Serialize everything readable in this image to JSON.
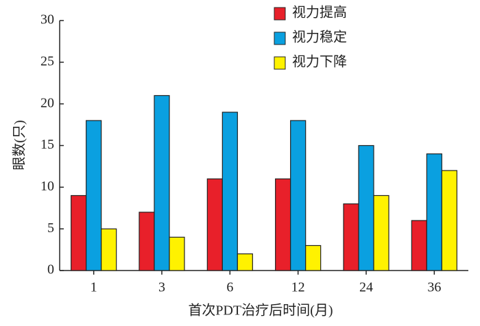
{
  "chart_data": {
    "type": "bar",
    "categories": [
      "1",
      "3",
      "6",
      "12",
      "24",
      "36"
    ],
    "series": [
      {
        "name": "视力提高",
        "color": "#e8202a",
        "values": [
          9,
          7,
          11,
          11,
          8,
          6
        ]
      },
      {
        "name": "视力稳定",
        "color": "#0aa0e0",
        "values": [
          18,
          21,
          19,
          18,
          15,
          14
        ]
      },
      {
        "name": "视力下降",
        "color": "#fff200",
        "values": [
          5,
          4,
          2,
          3,
          9,
          12
        ]
      }
    ],
    "x_label": "首次PDT治疗后时间(月)",
    "y_label": "眼数(只)",
    "ylim": [
      0,
      30
    ],
    "yticks": [
      0,
      5,
      10,
      15,
      20,
      25,
      30
    ],
    "legend": "upper right"
  }
}
